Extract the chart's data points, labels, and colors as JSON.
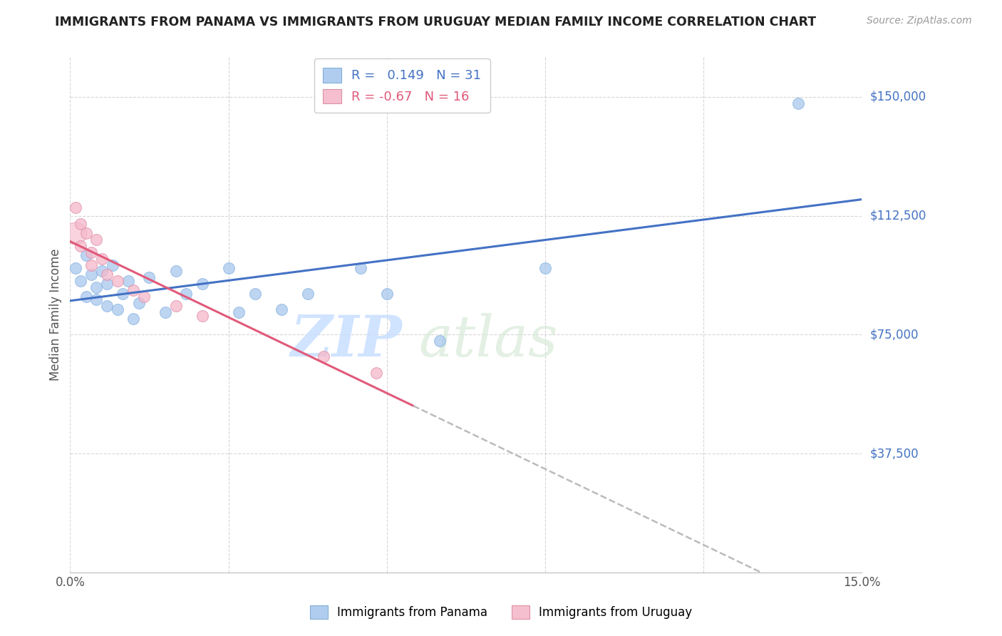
{
  "title": "IMMIGRANTS FROM PANAMA VS IMMIGRANTS FROM URUGUAY MEDIAN FAMILY INCOME CORRELATION CHART",
  "source": "Source: ZipAtlas.com",
  "ylabel": "Median Family Income",
  "xlim": [
    0.0,
    0.15
  ],
  "ylim": [
    0,
    162500
  ],
  "xticks": [
    0.0,
    0.03,
    0.06,
    0.09,
    0.12,
    0.15
  ],
  "xtick_labels": [
    "0.0%",
    "",
    "",
    "",
    "",
    "15.0%"
  ],
  "ytick_positions": [
    37500,
    75000,
    112500,
    150000
  ],
  "ytick_labels": [
    "$37,500",
    "$75,000",
    "$112,500",
    "$150,000"
  ],
  "r_panama": 0.149,
  "n_panama": 31,
  "r_uruguay": -0.67,
  "n_uruguay": 16,
  "color_panama": "#A8C8EE",
  "color_uruguay": "#F5B8CA",
  "color_panama_line": "#4472C4",
  "color_uruguay_line": "#E05A7A",
  "panama_x": [
    0.001,
    0.002,
    0.003,
    0.003,
    0.004,
    0.005,
    0.005,
    0.006,
    0.007,
    0.007,
    0.008,
    0.009,
    0.01,
    0.011,
    0.012,
    0.013,
    0.015,
    0.018,
    0.02,
    0.022,
    0.025,
    0.03,
    0.032,
    0.035,
    0.04,
    0.045,
    0.055,
    0.06,
    0.07,
    0.09,
    0.138
  ],
  "panama_y": [
    96000,
    92000,
    100000,
    87000,
    94000,
    90000,
    86000,
    95000,
    91000,
    84000,
    97000,
    83000,
    88000,
    92000,
    80000,
    85000,
    93000,
    82000,
    95000,
    88000,
    91000,
    96000,
    82000,
    88000,
    83000,
    88000,
    96000,
    88000,
    73000,
    96000,
    148000
  ],
  "uruguay_x": [
    0.001,
    0.002,
    0.002,
    0.003,
    0.004,
    0.004,
    0.005,
    0.006,
    0.007,
    0.009,
    0.012,
    0.014,
    0.02,
    0.025,
    0.048,
    0.058
  ],
  "uruguay_y": [
    115000,
    110000,
    103000,
    107000,
    101000,
    97000,
    105000,
    99000,
    94000,
    92000,
    89000,
    87000,
    84000,
    81000,
    68000,
    63000
  ],
  "watermark_zip": "ZIP",
  "watermark_atlas": "atlas",
  "background_color": "#FFFFFF",
  "grid_color": "#CCCCCC"
}
